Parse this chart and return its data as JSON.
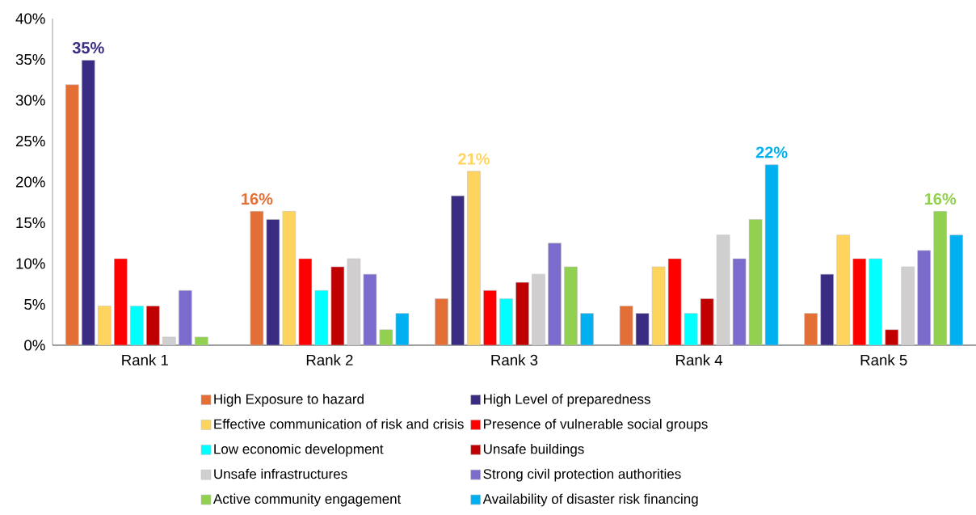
{
  "chart_data": {
    "type": "bar",
    "categories": [
      "Rank 1",
      "Rank 2",
      "Rank 3",
      "Rank 4",
      "Rank 5"
    ],
    "series": [
      {
        "name": "High Exposure to hazard",
        "color": "#e46f36",
        "values": [
          31.9,
          16.4,
          5.7,
          4.8,
          3.9
        ]
      },
      {
        "name": "High Level of preparedness",
        "color": "#3a2c83",
        "values": [
          34.9,
          15.4,
          18.3,
          3.9,
          8.7
        ]
      },
      {
        "name": "Effective communication of risk and crisis",
        "color": "#fed45e",
        "values": [
          4.8,
          16.4,
          21.3,
          9.6,
          13.5
        ]
      },
      {
        "name": "Presence of vulnerable social groups",
        "color": "#ff0000",
        "values": [
          10.6,
          10.6,
          6.7,
          10.6,
          10.6
        ]
      },
      {
        "name": "Low economic development",
        "color": "#00ffff",
        "values": [
          4.8,
          6.7,
          5.7,
          3.9,
          10.6
        ]
      },
      {
        "name": "Unsafe buildings",
        "color": "#c00000",
        "values": [
          4.8,
          9.6,
          7.7,
          5.7,
          1.9
        ]
      },
      {
        "name": "Unsafe infrastructures",
        "color": "#d0cece",
        "values": [
          1.0,
          10.6,
          8.7,
          13.5,
          9.6
        ]
      },
      {
        "name": "Strong civil protection authorities",
        "color": "#7a6bcc",
        "values": [
          6.7,
          8.7,
          12.5,
          10.6,
          11.6
        ]
      },
      {
        "name": "Active community engagement",
        "color": "#92d050",
        "values": [
          1.0,
          1.9,
          9.6,
          15.4,
          16.4
        ]
      },
      {
        "name": "Availability of disaster risk financing",
        "color": "#00b0f0",
        "values": [
          null,
          3.9,
          3.9,
          22.1,
          13.5
        ]
      }
    ],
    "ylim": [
      0,
      40
    ],
    "yticks": [
      {
        "value": 0,
        "label": "0%"
      },
      {
        "value": 5,
        "label": "5%"
      },
      {
        "value": 10,
        "label": "10%"
      },
      {
        "value": 15,
        "label": "15%"
      },
      {
        "value": 20,
        "label": "20%"
      },
      {
        "value": 25,
        "label": "25%"
      },
      {
        "value": 30,
        "label": "30%"
      },
      {
        "value": 35,
        "label": "35%"
      },
      {
        "value": 40,
        "label": "40%"
      }
    ],
    "annotations": [
      "35%",
      "16%",
      "21%",
      "22%",
      "16%"
    ],
    "grid": false,
    "legend": "bottom"
  }
}
